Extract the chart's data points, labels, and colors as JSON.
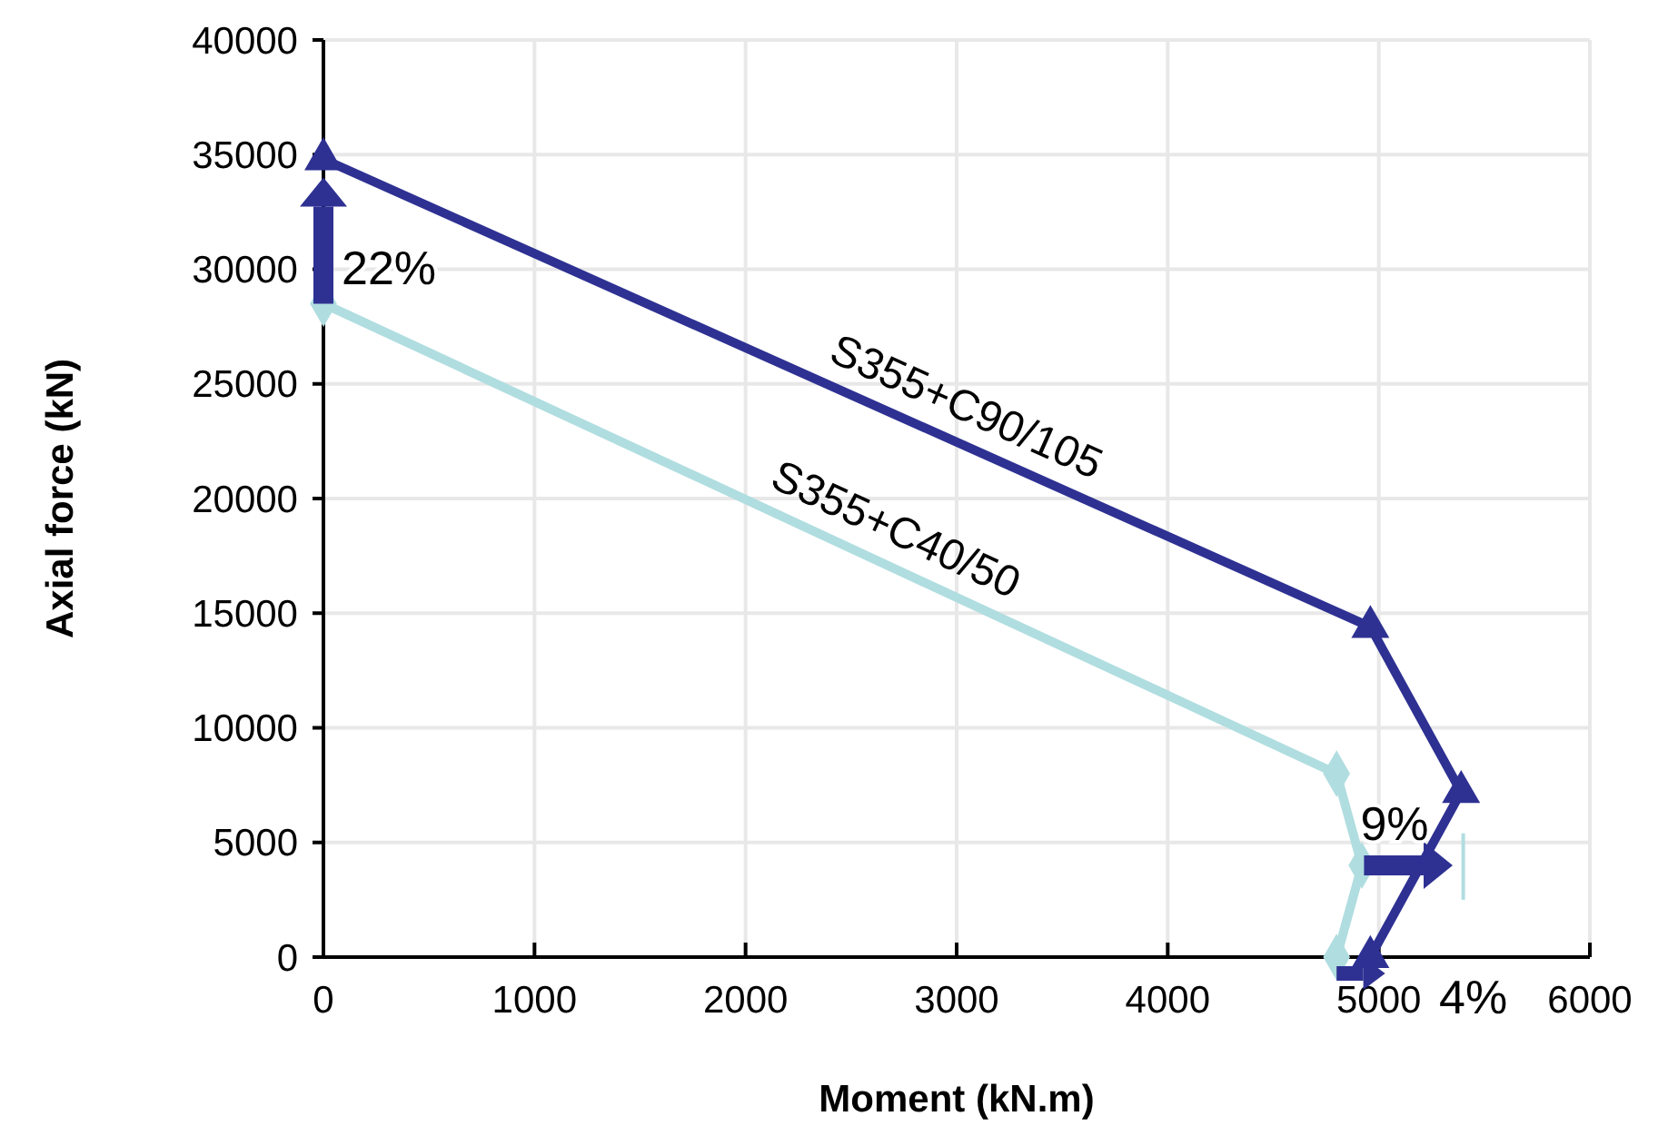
{
  "chart_data": {
    "type": "line",
    "xlabel": "Moment (kN.m)",
    "ylabel": "Axial force (kN)",
    "xlim": [
      0,
      6000
    ],
    "xticks": [
      0,
      1000,
      2000,
      3000,
      4000,
      5000,
      6000
    ],
    "ylim": [
      0,
      40000
    ],
    "yticks": [
      0,
      5000,
      10000,
      15000,
      20000,
      25000,
      30000,
      35000,
      40000
    ],
    "grid": true,
    "series": [
      {
        "name": "S355+C90/105",
        "color": "#2e3192",
        "marker": "triangle",
        "x": [
          0,
          4960,
          5390,
          4960
        ],
        "values": [
          34800,
          14400,
          7200,
          0
        ]
      },
      {
        "name": "S355+C40/50",
        "color": "#b0dde0",
        "marker": "diamond",
        "x": [
          0,
          4800,
          4920,
          4800
        ],
        "values": [
          28500,
          8000,
          4000,
          0
        ]
      }
    ],
    "annotations": [
      "22%",
      "9%",
      "4%"
    ]
  }
}
